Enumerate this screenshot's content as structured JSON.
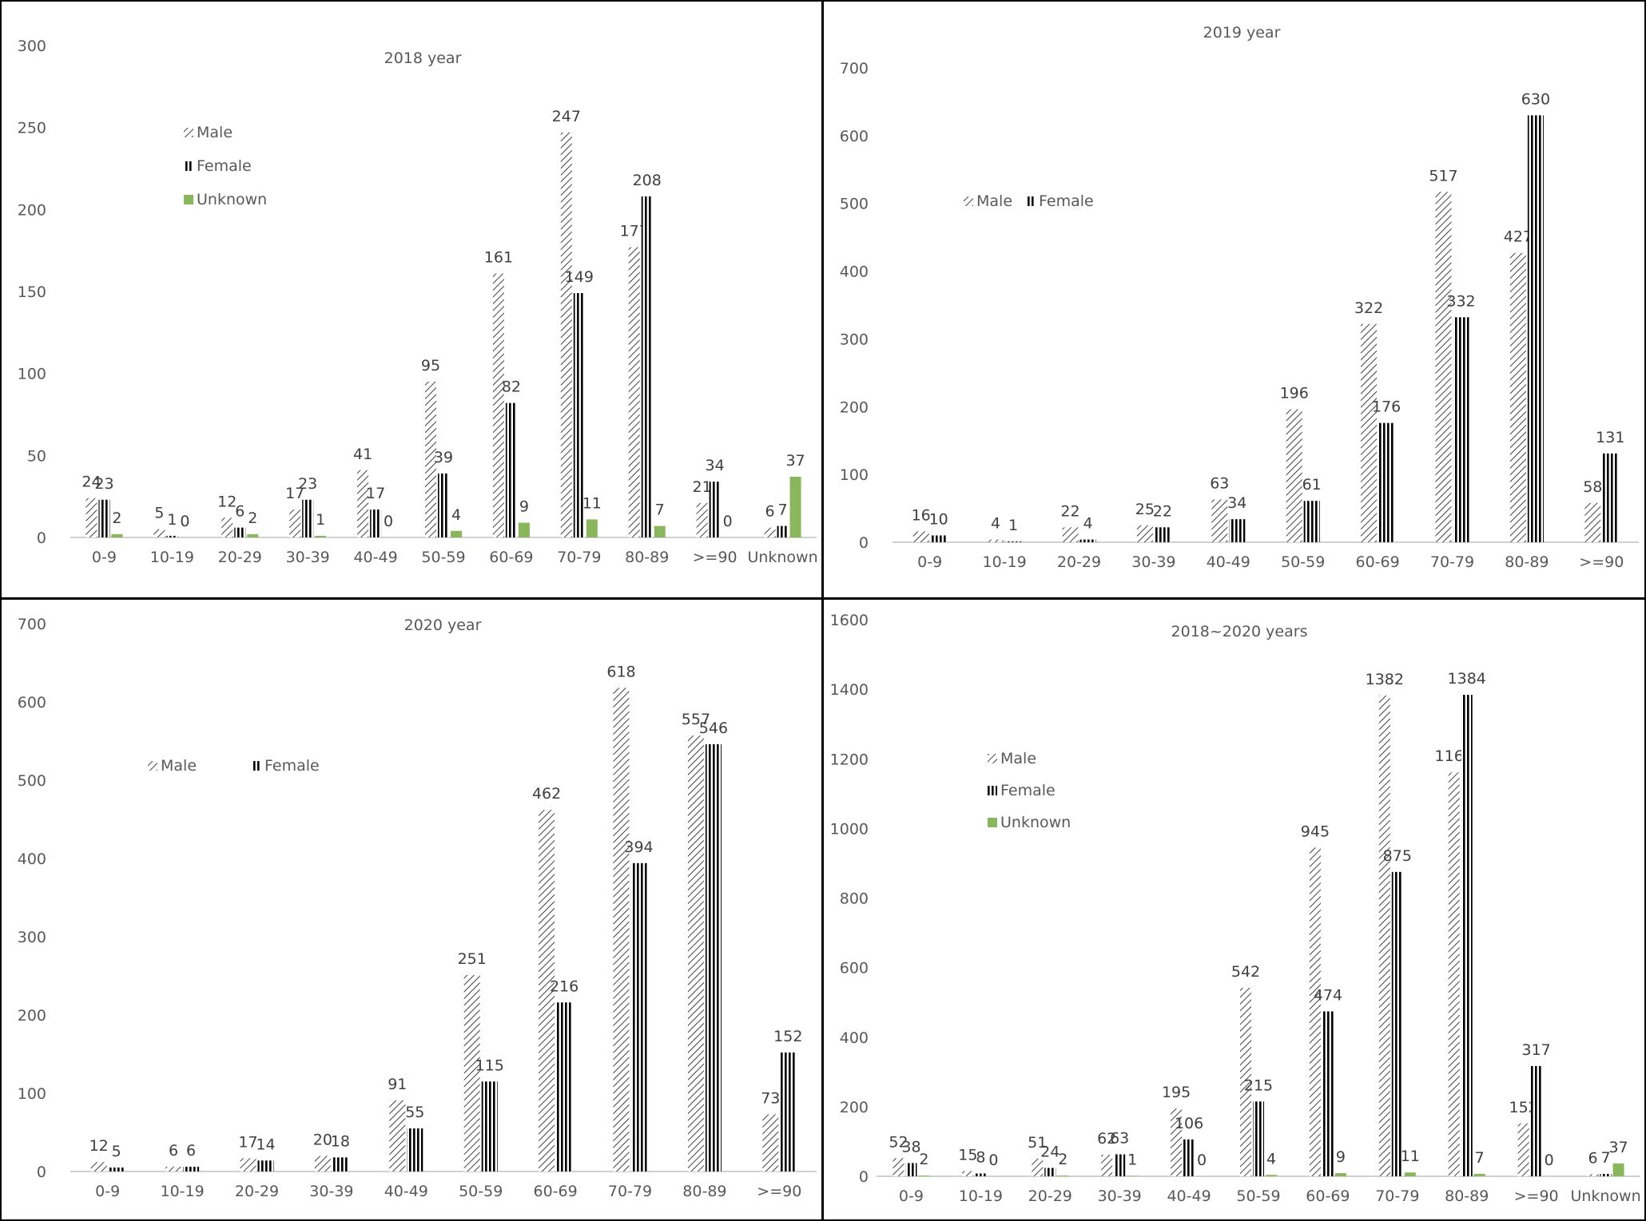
{
  "colors": {
    "male": "#404040",
    "female": "#000000",
    "unknown": "#8ab75c",
    "axis": "#d0d0d0",
    "border": "#000000"
  },
  "chart_data": [
    {
      "type": "bar",
      "title": "2018 year",
      "categories": [
        "0-9",
        "10-19",
        "20-29",
        "30-39",
        "40-49",
        "50-59",
        "60-69",
        "70-79",
        "80-89",
        ">=90",
        "Unknown"
      ],
      "series": [
        {
          "name": "Male",
          "values": [
            24,
            5,
            12,
            17,
            41,
            95,
            161,
            247,
            177,
            21,
            6
          ]
        },
        {
          "name": "Female",
          "values": [
            23,
            1,
            6,
            23,
            17,
            39,
            82,
            149,
            208,
            34,
            7
          ]
        },
        {
          "name": "Unknown",
          "values": [
            2,
            0,
            2,
            1,
            0,
            4,
            9,
            11,
            7,
            0,
            37
          ]
        }
      ],
      "ylim": [
        0,
        300
      ],
      "yticks": [
        0,
        50,
        100,
        150,
        200,
        250,
        300
      ],
      "legend": [
        "Male",
        "Female",
        "Unknown"
      ],
      "legend_position": "left-stacked"
    },
    {
      "type": "bar",
      "title": "2019 year",
      "categories": [
        "0-9",
        "10-19",
        "20-29",
        "30-39",
        "40-49",
        "50-59",
        "60-69",
        "70-79",
        "80-89",
        ">=90"
      ],
      "series": [
        {
          "name": "Male",
          "values": [
            16,
            4,
            22,
            25,
            63,
            196,
            322,
            517,
            427,
            58
          ]
        },
        {
          "name": "Female",
          "values": [
            10,
            1,
            4,
            22,
            34,
            61,
            176,
            332,
            630,
            131
          ]
        }
      ],
      "ylim": [
        0,
        700
      ],
      "yticks": [
        0,
        100,
        200,
        300,
        400,
        500,
        600,
        700
      ],
      "legend": [
        "Male",
        "Female"
      ],
      "legend_position": "left-inline"
    },
    {
      "type": "bar",
      "title": "2020 year",
      "categories": [
        "0-9",
        "10-19",
        "20-29",
        "30-39",
        "40-49",
        "50-59",
        "60-69",
        "70-79",
        "80-89",
        ">=90"
      ],
      "series": [
        {
          "name": "Male",
          "values": [
            12,
            6,
            17,
            20,
            91,
            251,
            462,
            618,
            557,
            73
          ]
        },
        {
          "name": "Female",
          "values": [
            5,
            6,
            14,
            18,
            55,
            115,
            216,
            394,
            546,
            152
          ]
        }
      ],
      "ylim": [
        0,
        700
      ],
      "yticks": [
        0,
        100,
        200,
        300,
        400,
        500,
        600,
        700
      ],
      "legend": [
        "Male",
        "Female"
      ],
      "legend_position": "left-inline"
    },
    {
      "type": "bar",
      "title": "2018~2020 years",
      "categories": [
        "0-9",
        "10-19",
        "20-29",
        "30-39",
        "40-49",
        "50-59",
        "60-69",
        "70-79",
        "80-89",
        ">=90",
        "Unknown"
      ],
      "series": [
        {
          "name": "Male",
          "values": [
            52,
            15,
            51,
            62,
            195,
            542,
            945,
            1382,
            1161,
            152,
            6
          ]
        },
        {
          "name": "Female",
          "values": [
            38,
            8,
            24,
            63,
            106,
            215,
            474,
            875,
            1384,
            317,
            7
          ]
        },
        {
          "name": "Unknown",
          "values": [
            2,
            0,
            2,
            1,
            0,
            4,
            9,
            11,
            7,
            0,
            37
          ]
        }
      ],
      "ylim": [
        0,
        1600
      ],
      "yticks": [
        0,
        200,
        400,
        600,
        800,
        1000,
        1200,
        1400,
        1600
      ],
      "legend": [
        "Male",
        "Female",
        "Unknown"
      ],
      "legend_position": "left-stacked"
    }
  ]
}
